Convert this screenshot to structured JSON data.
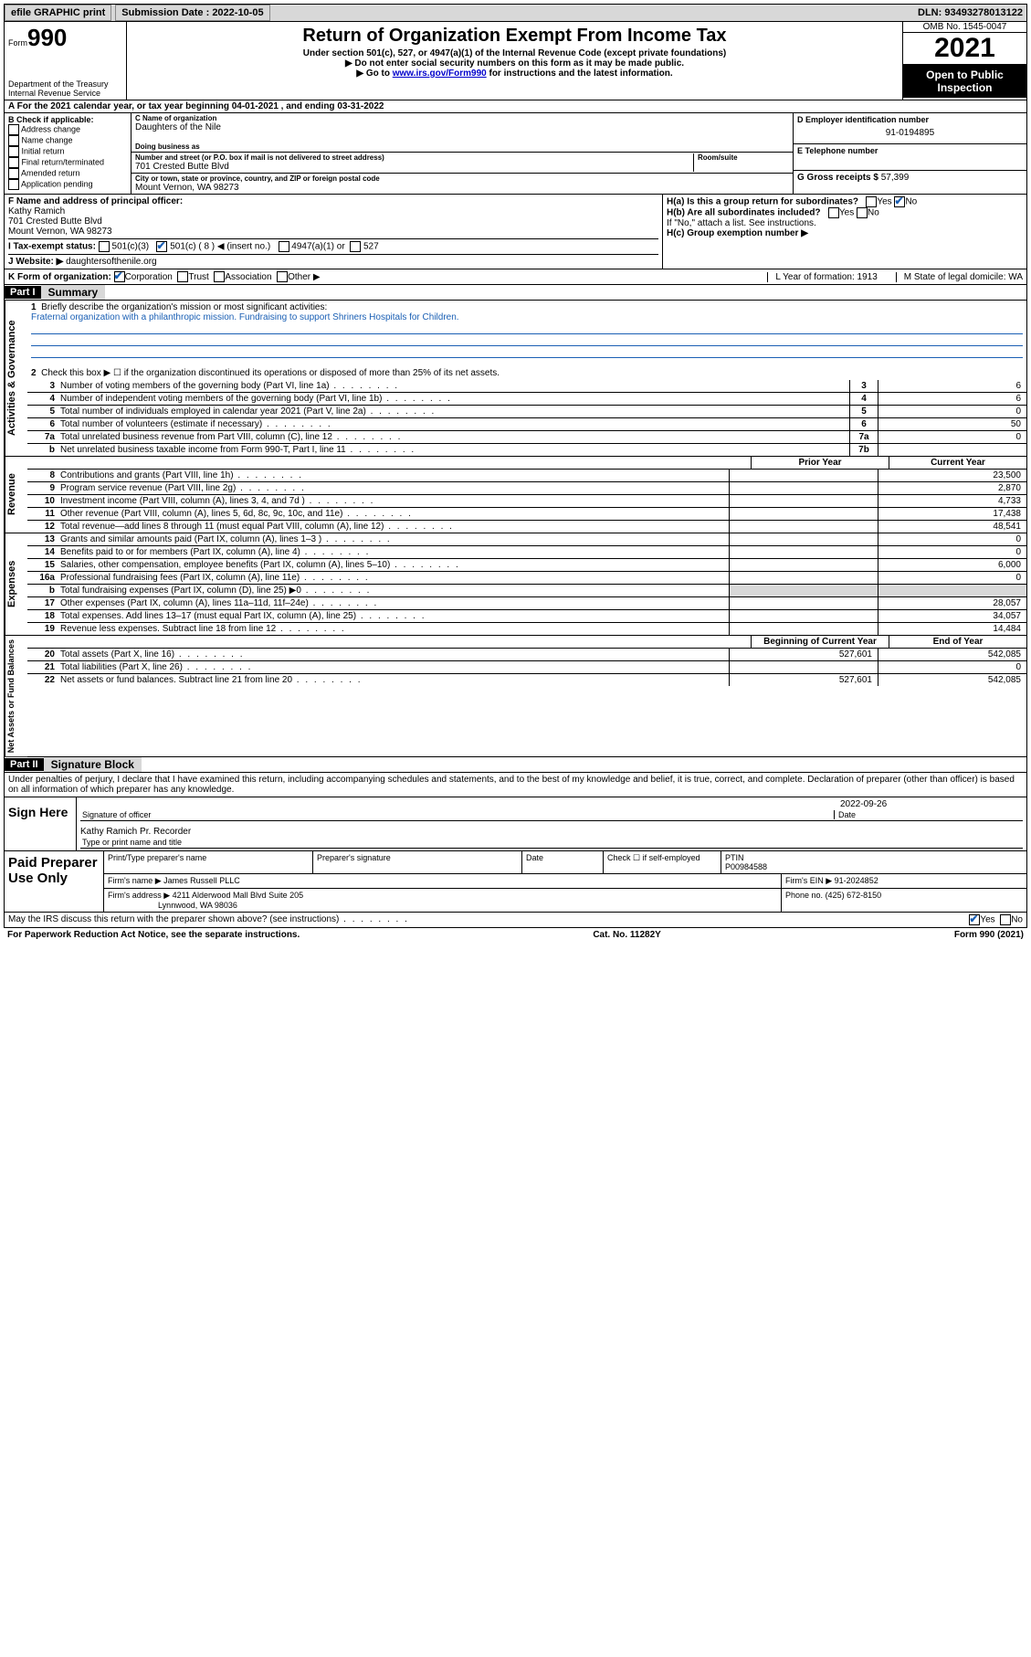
{
  "topbar": {
    "efile": "efile GRAPHIC print",
    "sub_label": "Submission Date : 2022-10-05",
    "dln_label": "DLN: 93493278013122"
  },
  "header": {
    "form_word": "Form",
    "form_num": "990",
    "dept": "Department of the Treasury",
    "irs": "Internal Revenue Service",
    "title": "Return of Organization Exempt From Income Tax",
    "sub1": "Under section 501(c), 527, or 4947(a)(1) of the Internal Revenue Code (except private foundations)",
    "sub2": "▶ Do not enter social security numbers on this form as it may be made public.",
    "sub3_pre": "▶ Go to ",
    "sub3_link": "www.irs.gov/Form990",
    "sub3_post": " for instructions and the latest information.",
    "omb": "OMB No. 1545-0047",
    "year": "2021",
    "inspect": "Open to Public Inspection"
  },
  "rowA": "A For the 2021 calendar year, or tax year beginning 04-01-2021   , and ending 03-31-2022",
  "colB": {
    "label": "B Check if applicable:",
    "items": [
      "Address change",
      "Name change",
      "Initial return",
      "Final return/terminated",
      "Amended return",
      "Application pending"
    ]
  },
  "colC": {
    "name_label": "C Name of organization",
    "name": "Daughters of the Nile",
    "dba_label": "Doing business as",
    "addr_label": "Number and street (or P.O. box if mail is not delivered to street address)",
    "room_label": "Room/suite",
    "addr": "701 Crested Butte Blvd",
    "city_label": "City or town, state or province, country, and ZIP or foreign postal code",
    "city": "Mount Vernon, WA  98273"
  },
  "colDE": {
    "d_label": "D Employer identification number",
    "d_val": "91-0194895",
    "e_label": "E Telephone number",
    "g_label": "G Gross receipts $ ",
    "g_val": "57,399"
  },
  "rowF": {
    "label": "F  Name and address of principal officer:",
    "name": "Kathy Ramich",
    "addr1": "701 Crested Butte Blvd",
    "addr2": "Mount Vernon, WA  98273"
  },
  "rowH": {
    "ha": "H(a)  Is this a group return for subordinates?",
    "hb": "H(b)  Are all subordinates included?",
    "hb_note": "If \"No,\" attach a list. See instructions.",
    "hc": "H(c)  Group exemption number ▶"
  },
  "rowI": {
    "label": "I   Tax-exempt status:",
    "c3": "501(c)(3)",
    "c": "501(c) ( 8 ) ◀ (insert no.)",
    "a1": "4947(a)(1) or",
    "s527": "527"
  },
  "rowJ": {
    "label": "J   Website: ▶ ",
    "val": "daughtersofthenile.org"
  },
  "rowK": {
    "label": "K Form of organization:",
    "corp": "Corporation",
    "trust": "Trust",
    "assoc": "Association",
    "other": "Other ▶",
    "l": "L Year of formation: 1913",
    "m": "M State of legal domicile: WA"
  },
  "part1": {
    "header": "Part I",
    "label": "Summary",
    "q1": "Briefly describe the organization's mission or most significant activities:",
    "mission": "Fraternal organization with a philanthropic mission. Fundraising to support Shriners Hospitals for Children.",
    "q2": "Check this box ▶ ☐  if the organization discontinued its operations or disposed of more than 25% of its net assets.",
    "lines_gov": [
      {
        "n": "3",
        "d": "Number of voting members of the governing body (Part VI, line 1a)",
        "box": "3",
        "v": "6"
      },
      {
        "n": "4",
        "d": "Number of independent voting members of the governing body (Part VI, line 1b)",
        "box": "4",
        "v": "6"
      },
      {
        "n": "5",
        "d": "Total number of individuals employed in calendar year 2021 (Part V, line 2a)",
        "box": "5",
        "v": "0"
      },
      {
        "n": "6",
        "d": "Total number of volunteers (estimate if necessary)",
        "box": "6",
        "v": "50"
      },
      {
        "n": "7a",
        "d": "Total unrelated business revenue from Part VIII, column (C), line 12",
        "box": "7a",
        "v": "0"
      },
      {
        "n": "b",
        "d": "Net unrelated business taxable income from Form 990-T, Part I, line 11",
        "box": "7b",
        "v": ""
      }
    ],
    "prior_h": "Prior Year",
    "curr_h": "Current Year",
    "lines_rev": [
      {
        "n": "8",
        "d": "Contributions and grants (Part VIII, line 1h)",
        "p": "",
        "c": "23,500"
      },
      {
        "n": "9",
        "d": "Program service revenue (Part VIII, line 2g)",
        "p": "",
        "c": "2,870"
      },
      {
        "n": "10",
        "d": "Investment income (Part VIII, column (A), lines 3, 4, and 7d )",
        "p": "",
        "c": "4,733"
      },
      {
        "n": "11",
        "d": "Other revenue (Part VIII, column (A), lines 5, 6d, 8c, 9c, 10c, and 11e)",
        "p": "",
        "c": "17,438"
      },
      {
        "n": "12",
        "d": "Total revenue—add lines 8 through 11 (must equal Part VIII, column (A), line 12)",
        "p": "",
        "c": "48,541"
      }
    ],
    "lines_exp": [
      {
        "n": "13",
        "d": "Grants and similar amounts paid (Part IX, column (A), lines 1–3 )",
        "p": "",
        "c": "0"
      },
      {
        "n": "14",
        "d": "Benefits paid to or for members (Part IX, column (A), line 4)",
        "p": "",
        "c": "0"
      },
      {
        "n": "15",
        "d": "Salaries, other compensation, employee benefits (Part IX, column (A), lines 5–10)",
        "p": "",
        "c": "6,000"
      },
      {
        "n": "16a",
        "d": "Professional fundraising fees (Part IX, column (A), line 11e)",
        "p": "",
        "c": "0"
      },
      {
        "n": "b",
        "d": "Total fundraising expenses (Part IX, column (D), line 25) ▶0",
        "p": "shade",
        "c": "shade"
      },
      {
        "n": "17",
        "d": "Other expenses (Part IX, column (A), lines 11a–11d, 11f–24e)",
        "p": "",
        "c": "28,057"
      },
      {
        "n": "18",
        "d": "Total expenses. Add lines 13–17 (must equal Part IX, column (A), line 25)",
        "p": "",
        "c": "34,057"
      },
      {
        "n": "19",
        "d": "Revenue less expenses. Subtract line 18 from line 12",
        "p": "",
        "c": "14,484"
      }
    ],
    "begin_h": "Beginning of Current Year",
    "end_h": "End of Year",
    "lines_net": [
      {
        "n": "20",
        "d": "Total assets (Part X, line 16)",
        "p": "527,601",
        "c": "542,085"
      },
      {
        "n": "21",
        "d": "Total liabilities (Part X, line 26)",
        "p": "",
        "c": "0"
      },
      {
        "n": "22",
        "d": "Net assets or fund balances. Subtract line 21 from line 20",
        "p": "527,601",
        "c": "542,085"
      }
    ]
  },
  "part2": {
    "header": "Part II",
    "label": "Signature Block",
    "decl": "Under penalties of perjury, I declare that I have examined this return, including accompanying schedules and statements, and to the best of my knowledge and belief, it is true, correct, and complete. Declaration of preparer (other than officer) is based on all information of which preparer has any knowledge.",
    "sign_here": "Sign Here",
    "sig_officer": "Signature of officer",
    "date": "Date",
    "date_val": "2022-09-26",
    "name_title": "Kathy Ramich  Pr. Recorder",
    "type_name": "Type or print name and title",
    "paid": "Paid Preparer Use Only",
    "pt_name": "Print/Type preparer's name",
    "p_sig": "Preparer's signature",
    "p_date": "Date",
    "check_se": "Check ☐ if self-employed",
    "ptin_l": "PTIN",
    "ptin": "P00984588",
    "firm_name_l": "Firm's name    ▶",
    "firm_name": "James Russell PLLC",
    "firm_ein_l": "Firm's EIN ▶",
    "firm_ein": "91-2024852",
    "firm_addr_l": "Firm's address ▶",
    "firm_addr1": "4211 Alderwood Mall Blvd Suite 205",
    "firm_addr2": "Lynnwood, WA  98036",
    "phone_l": "Phone no.",
    "phone": "(425) 672-8150",
    "discuss": "May the IRS discuss this return with the preparer shown above? (see instructions)",
    "paperwork": "For Paperwork Reduction Act Notice, see the separate instructions.",
    "cat": "Cat. No. 11282Y",
    "formfoot": "Form 990 (2021)"
  },
  "tabs": {
    "gov": "Activities & Governance",
    "rev": "Revenue",
    "exp": "Expenses",
    "net": "Net Assets or Fund Balances"
  }
}
